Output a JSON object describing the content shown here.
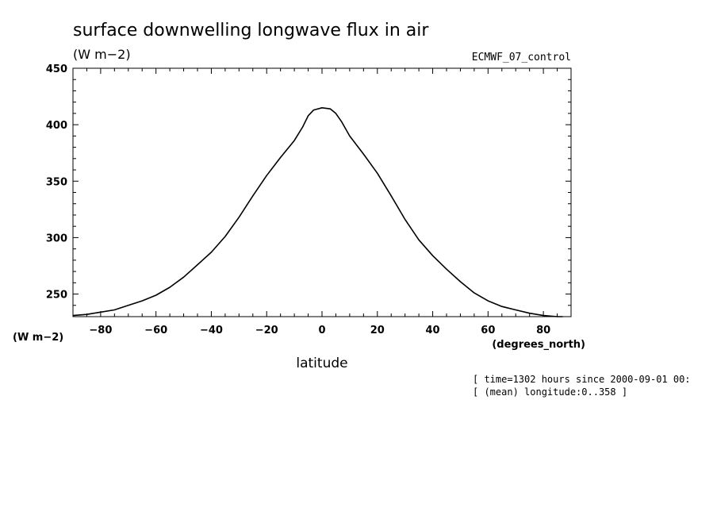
{
  "chart_data": {
    "type": "line",
    "title": "surface downwelling longwave flux in air",
    "units_label": "(W m−2)",
    "model_label": "ECMWF_07_control",
    "ylabel": "(W m−2)",
    "xlabel": "latitude",
    "x_units": "(degrees_north)",
    "annotations": [
      "[ time=1302 hours since 2000-09-01 00:",
      "[ (mean) longitude:0..358 ]"
    ],
    "xlim": [
      -90,
      90
    ],
    "ylim": [
      230,
      450
    ],
    "x_ticks": [
      -80,
      -60,
      -40,
      -20,
      0,
      20,
      40,
      60,
      80
    ],
    "x_tick_labels": [
      "−80",
      "−60",
      "−40",
      "−20",
      "0",
      "20",
      "40",
      "60",
      "80"
    ],
    "y_ticks": [
      250,
      300,
      350,
      400,
      450
    ],
    "y_tick_labels": [
      "250",
      "300",
      "350",
      "400",
      "450"
    ],
    "series": [
      {
        "x": [
          -90,
          -85,
          -80,
          -75,
          -70,
          -65,
          -60,
          -55,
          -50,
          -45,
          -40,
          -35,
          -30,
          -25,
          -20,
          -15,
          -10,
          -7,
          -5,
          -3,
          0,
          3,
          5,
          7,
          10,
          15,
          20,
          25,
          30,
          35,
          40,
          45,
          50,
          55,
          60,
          65,
          70,
          75,
          80,
          85,
          87
        ],
        "y": [
          231,
          232,
          234,
          236,
          240,
          244,
          249,
          256,
          265,
          276,
          287,
          301,
          318,
          337,
          355,
          371,
          386,
          398,
          408,
          413,
          415,
          414,
          410,
          403,
          390,
          374,
          357,
          337,
          316,
          298,
          284,
          272,
          261,
          251,
          244,
          239,
          236,
          233,
          231,
          230,
          230
        ]
      }
    ]
  }
}
